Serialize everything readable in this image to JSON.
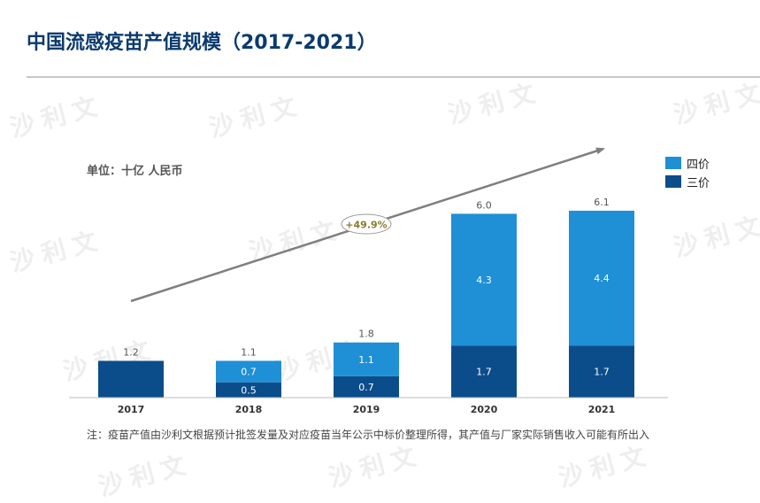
{
  "title": "中国流感疫苗产值规模（2017-2021）",
  "unit_label": "单位：十亿 人民币",
  "note": "注：疫苗产值由沙利文根据预计批签发量及对应疫苗当年公示中标价整理所得，其产值与厂家实际销售收入可能有所出入",
  "watermark_text": "沙利文",
  "colors": {
    "four_valent": "#1f8fd6",
    "three_valent": "#0b4d8a",
    "title": "#0b3a6e"
  },
  "chart_data": {
    "type": "bar",
    "stacked": true,
    "categories": [
      "2017",
      "2018",
      "2019",
      "2020",
      "2021"
    ],
    "series": [
      {
        "name": "三价",
        "values": [
          1.2,
          0.5,
          0.7,
          1.7,
          1.7
        ]
      },
      {
        "name": "四价",
        "values": [
          0,
          0.7,
          1.1,
          4.3,
          4.4
        ]
      }
    ],
    "segment_labels": {
      "三价": [
        "1.2",
        "0.5",
        "0.7",
        "1.7",
        "1.7"
      ],
      "四价": [
        "",
        "0.7",
        "1.1",
        "4.3",
        "4.4"
      ]
    },
    "totals": [
      "1.2",
      "1.1",
      "1.8",
      "6.0",
      "6.1"
    ],
    "cagr_label": "+49.9%",
    "legend": [
      "四价",
      "三价"
    ],
    "legend_position": "top-right",
    "ylim": [
      0,
      6.5
    ],
    "grid": false
  }
}
